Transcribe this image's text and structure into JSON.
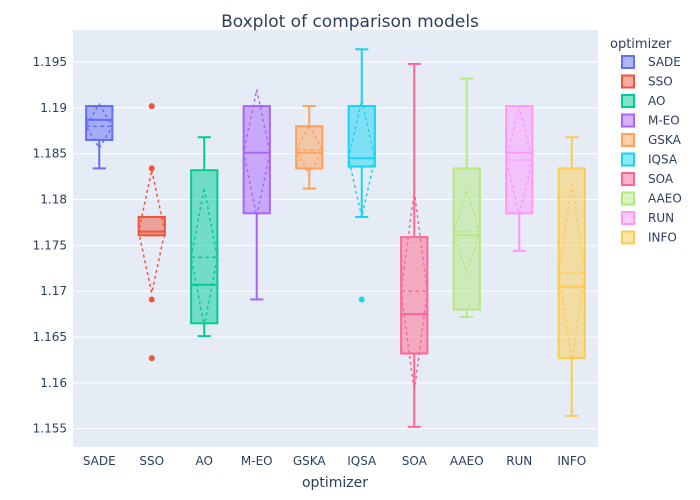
{
  "chart_data": {
    "type": "boxplot",
    "title": "Boxplot of comparison models",
    "xlabel": "optimizer",
    "ylabel": "",
    "ylim": [
      1.153,
      1.1985
    ],
    "y_ticks": [
      1.155,
      1.16,
      1.165,
      1.17,
      1.175,
      1.18,
      1.185,
      1.19,
      1.195
    ],
    "y_tick_labels": [
      "1.155",
      "1.16",
      "1.165",
      "1.17",
      "1.175",
      "1.18",
      "1.185",
      "1.19",
      "1.195"
    ],
    "grid": true,
    "legend": {
      "title": "optimizer",
      "placement": "right"
    },
    "categories": [
      "SADE",
      "SSO",
      "AO",
      "M-EO",
      "GSKA",
      "IQSA",
      "SOA",
      "AAEO",
      "RUN",
      "INFO"
    ],
    "series": [
      {
        "name": "SADE",
        "color": "#636efa",
        "q1": 1.1865,
        "median": 1.1887,
        "q3": 1.1902,
        "lower_whisker": 1.1834,
        "upper_whisker": 1.1902,
        "mean": 1.188,
        "sd": 0.0024,
        "outliers": []
      },
      {
        "name": "SSO",
        "color": "#EF553B",
        "q1": 1.1761,
        "median": 1.1765,
        "q3": 1.1781,
        "lower_whisker": 1.1761,
        "upper_whisker": 1.1781,
        "mean": 1.1765,
        "sd": 0.0067,
        "outliers": [
          1.1902,
          1.1834,
          1.1691,
          1.1627
        ]
      },
      {
        "name": "AO",
        "color": "#00cc96",
        "q1": 1.1665,
        "median": 1.1707,
        "q3": 1.1832,
        "lower_whisker": 1.1651,
        "upper_whisker": 1.1868,
        "mean": 1.1737,
        "sd": 0.0075,
        "outliers": []
      },
      {
        "name": "M-EO",
        "color": "#ab63fa",
        "q1": 1.1785,
        "median": 1.1851,
        "q3": 1.1902,
        "lower_whisker": 1.1691,
        "upper_whisker": 1.1902,
        "mean": 1.1851,
        "sd": 0.0069,
        "outliers": []
      },
      {
        "name": "GSKA",
        "color": "#FFA15A",
        "q1": 1.1834,
        "median": 1.1851,
        "q3": 1.188,
        "lower_whisker": 1.1812,
        "upper_whisker": 1.1902,
        "mean": 1.1854,
        "sd": 0.0027,
        "outliers": []
      },
      {
        "name": "IQSA",
        "color": "#19d3f3",
        "q1": 1.1836,
        "median": 1.1845,
        "q3": 1.1902,
        "lower_whisker": 1.1781,
        "upper_whisker": 1.1964,
        "mean": 1.1845,
        "sd": 0.0064,
        "outliers": [
          1.1691
        ]
      },
      {
        "name": "SOA",
        "color": "#FF6692",
        "q1": 1.1632,
        "median": 1.1675,
        "q3": 1.1759,
        "lower_whisker": 1.1552,
        "upper_whisker": 1.1948,
        "mean": 1.17,
        "sd": 0.0109,
        "outliers": []
      },
      {
        "name": "AAEO",
        "color": "#B6E880",
        "q1": 1.168,
        "median": 1.1761,
        "q3": 1.1834,
        "lower_whisker": 1.1672,
        "upper_whisker": 1.1932,
        "mean": 1.1765,
        "sd": 0.0045,
        "outliers": []
      },
      {
        "name": "RUN",
        "color": "#FF97FF",
        "q1": 1.1785,
        "median": 1.1851,
        "q3": 1.1902,
        "lower_whisker": 1.1744,
        "upper_whisker": 1.1902,
        "mean": 1.1843,
        "sd": 0.0059,
        "outliers": []
      },
      {
        "name": "INFO",
        "color": "#FECB52",
        "q1": 1.1627,
        "median": 1.1705,
        "q3": 1.1834,
        "lower_whisker": 1.1564,
        "upper_whisker": 1.1868,
        "mean": 1.172,
        "sd": 0.0098,
        "outliers": []
      }
    ]
  }
}
